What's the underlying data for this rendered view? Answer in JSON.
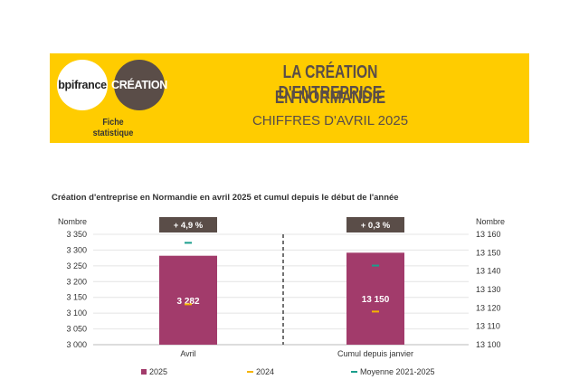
{
  "header": {
    "logo_bpi": "bpifrance",
    "logo_creation": "CRÉATION",
    "fiche": "Fiche statistique",
    "title_line1": "LA CRÉATION D'ENTREPRISE",
    "title_line2": "EN NORMANDIE",
    "subtitle": "CHIFFRES D'AVRIL 2025"
  },
  "colors": {
    "banner": "#ffcc00",
    "bar_2025": "#a23b6b",
    "marker_2024": "#f5b400",
    "marker_avg": "#1a9e8c",
    "badge": "#5a4d48",
    "brown": "#5a4d48"
  },
  "chart_data": {
    "type": "bar",
    "title": "Création d'entreprise en Normandie en avril 2025 et cumul depuis le début de l'année",
    "categories": [
      "Avril",
      "Cumul depuis janvier"
    ],
    "left_axis": {
      "label": "Nombre",
      "range": [
        3000,
        3350
      ],
      "ticks": [
        "3 000",
        "3 050",
        "3 100",
        "3 150",
        "3 200",
        "3 250",
        "3 300",
        "3 350"
      ]
    },
    "right_axis": {
      "label": "Nombre",
      "range": [
        13100,
        13160
      ],
      "ticks": [
        "13 100",
        "13 110",
        "13 120",
        "13 130",
        "13 140",
        "13 150",
        "13 160"
      ]
    },
    "series": [
      {
        "name": "2025",
        "kind": "bar",
        "values": [
          3282,
          13150
        ],
        "labels": [
          "3 282",
          "13 150"
        ]
      },
      {
        "name": "2024",
        "kind": "marker",
        "values": [
          3128,
          13118
        ]
      },
      {
        "name": "Moyenne 2021-2025",
        "kind": "marker",
        "values": [
          3323,
          13143
        ]
      }
    ],
    "badges": [
      "+ 4,9 %",
      "+ 0,3 %"
    ],
    "axes_mapping": [
      "left",
      "right"
    ],
    "grid": true,
    "legend_position": "bottom"
  }
}
